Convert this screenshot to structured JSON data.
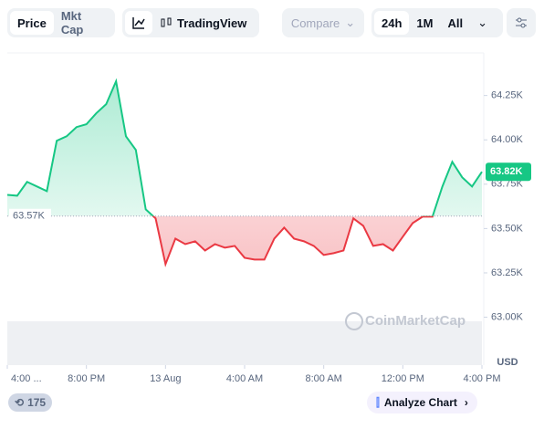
{
  "toolbar": {
    "tabs": [
      "Price",
      "Mkt Cap"
    ],
    "tradingview": "TradingView",
    "compare": "Compare",
    "ranges": [
      "24h",
      "1M",
      "All"
    ]
  },
  "chart_data": {
    "type": "line",
    "x": [
      0,
      0.5,
      1,
      1.5,
      2,
      2.5,
      3,
      3.5,
      4,
      4.5,
      5,
      5.5,
      6,
      6.5,
      7,
      7.5,
      8,
      8.5,
      9,
      9.5,
      10,
      10.5,
      11,
      11.5,
      12,
      12.5,
      13,
      13.5,
      14,
      14.5,
      15,
      15.5,
      16,
      16.5,
      17,
      17.5,
      18,
      18.5,
      19,
      19.5,
      20,
      20.5,
      21,
      21.5,
      22,
      22.5,
      23,
      23.5,
      24
    ],
    "values": [
      63690,
      63685,
      63763,
      63737,
      63711,
      63995,
      64020,
      64072,
      64088,
      64150,
      64201,
      64330,
      64020,
      63943,
      63608,
      63557,
      63299,
      63443,
      63412,
      63428,
      63376,
      63412,
      63392,
      63402,
      63335,
      63325,
      63325,
      63443,
      63505,
      63443,
      63428,
      63402,
      63351,
      63361,
      63376,
      63557,
      63515,
      63402,
      63412,
      63376,
      63454,
      63531,
      63567,
      63567,
      63737,
      63876,
      63789,
      63737,
      63820
    ],
    "up_color": "#16c784",
    "down_color": "#ea3943",
    "baseline": {
      "value": 63570,
      "label": "63.57K"
    },
    "last": {
      "value": 63820,
      "label": "63.82K"
    },
    "xlim": [
      0,
      24
    ],
    "xticks": [
      {
        "value": 0,
        "label": "4:00 ..."
      },
      {
        "value": 4,
        "label": "8:00 PM"
      },
      {
        "value": 8,
        "label": "13 Aug"
      },
      {
        "value": 12,
        "label": "4:00 AM"
      },
      {
        "value": 16,
        "label": "8:00 AM"
      },
      {
        "value": 20,
        "label": "12:00 PM"
      },
      {
        "value": 24,
        "label": "4:00 PM"
      }
    ],
    "ylim": [
      62730,
      64490
    ],
    "yticks": [
      {
        "value": 63000,
        "label": "63.00K"
      },
      {
        "value": 63250,
        "label": "63.25K"
      },
      {
        "value": 63500,
        "label": "63.50K"
      },
      {
        "value": 63750,
        "label": "63.75K"
      },
      {
        "value": 64000,
        "label": "64.00K"
      },
      {
        "value": 64250,
        "label": "64.25K"
      }
    ],
    "ylabel": "USD",
    "watermark": "CoinMarketCap"
  },
  "footer": {
    "badge": "175",
    "analyze": "Analyze Chart"
  }
}
